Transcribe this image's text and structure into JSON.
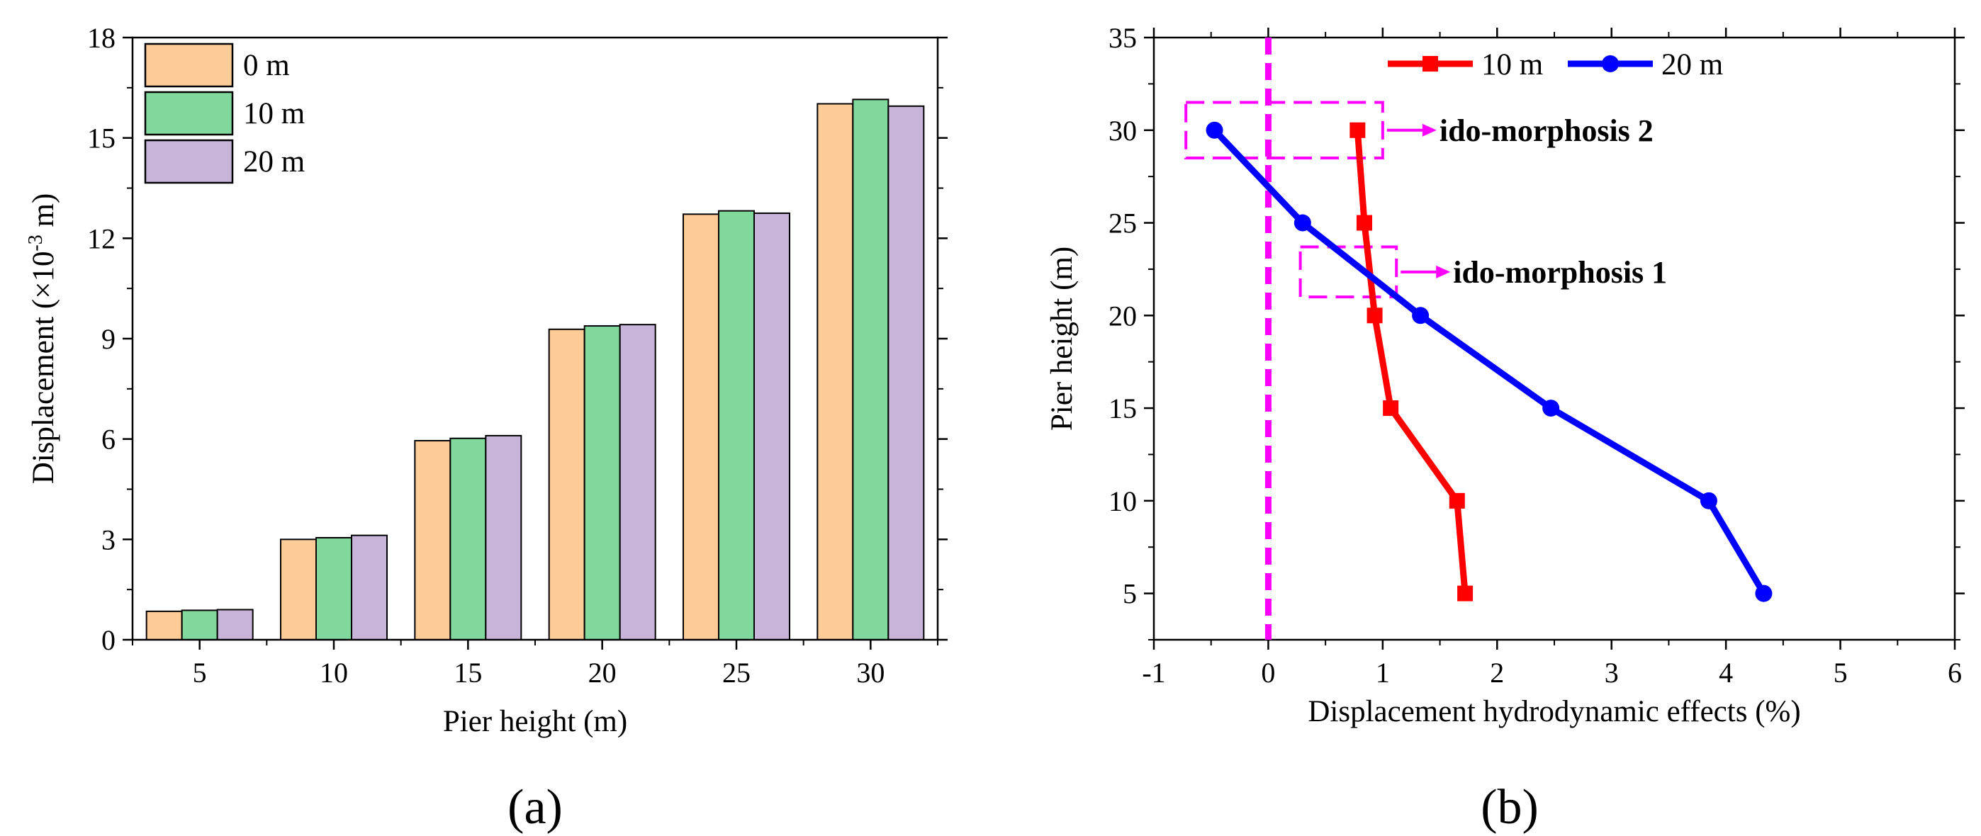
{
  "chart_data": [
    {
      "type": "bar",
      "panel_label": "(a)",
      "title": "",
      "xlabel": "Pier height (m)",
      "ylabel_parts": [
        "Displacement (×10",
        "-3",
        " m)"
      ],
      "categories": [
        "5",
        "10",
        "15",
        "20",
        "25",
        "30"
      ],
      "series": [
        {
          "name": "0 m",
          "color": "#FDCB96",
          "values": [
            0.85,
            3.0,
            5.95,
            9.28,
            12.72,
            16.02
          ]
        },
        {
          "name": "10 m",
          "color": "#80D89C",
          "values": [
            0.88,
            3.05,
            6.02,
            9.38,
            12.82,
            16.15
          ]
        },
        {
          "name": "20 m",
          "color": "#C8B3D9",
          "values": [
            0.9,
            3.12,
            6.1,
            9.42,
            12.75,
            15.95
          ]
        }
      ],
      "ylim": [
        0,
        18
      ],
      "yticks": [
        "0",
        "3",
        "6",
        "9",
        "12",
        "15",
        "18"
      ],
      "legend_position": "top-left"
    },
    {
      "type": "line",
      "panel_label": "(b)",
      "title": "",
      "xlabel": "Displacement hydrodynamic effects (%)",
      "ylabel": "Pier height (m)",
      "xlim": [
        -1,
        6
      ],
      "ylim": [
        2.5,
        35
      ],
      "xticks": [
        "-1",
        "0",
        "1",
        "2",
        "3",
        "4",
        "5",
        "6"
      ],
      "yticks": [
        "5",
        "10",
        "15",
        "20",
        "25",
        "30",
        "35"
      ],
      "series": [
        {
          "name": "10 m",
          "color": "#FF0000",
          "marker": "square",
          "x": [
            1.72,
            1.65,
            1.07,
            0.93,
            0.84,
            0.78
          ],
          "y": [
            5,
            10,
            15,
            20,
            25,
            30
          ]
        },
        {
          "name": "20 m",
          "color": "#0000FF",
          "marker": "circle",
          "x": [
            4.33,
            3.85,
            2.47,
            1.33,
            0.3,
            -0.47
          ],
          "y": [
            5,
            10,
            15,
            20,
            25,
            30
          ]
        }
      ],
      "reference_line": {
        "x": 0,
        "color": "#FF00FF",
        "style": "dashed"
      },
      "annotations": [
        {
          "text": "ido-morphosis 2",
          "color": "#FF00FF",
          "box_x": [
            -0.72,
            1.0
          ],
          "box_y": [
            28.5,
            31.5
          ]
        },
        {
          "text": "ido-morphosis 1",
          "color": "#FF00FF",
          "box_x": [
            0.28,
            1.12
          ],
          "box_y": [
            21,
            23.7
          ]
        }
      ],
      "legend_position": "top-center"
    }
  ]
}
